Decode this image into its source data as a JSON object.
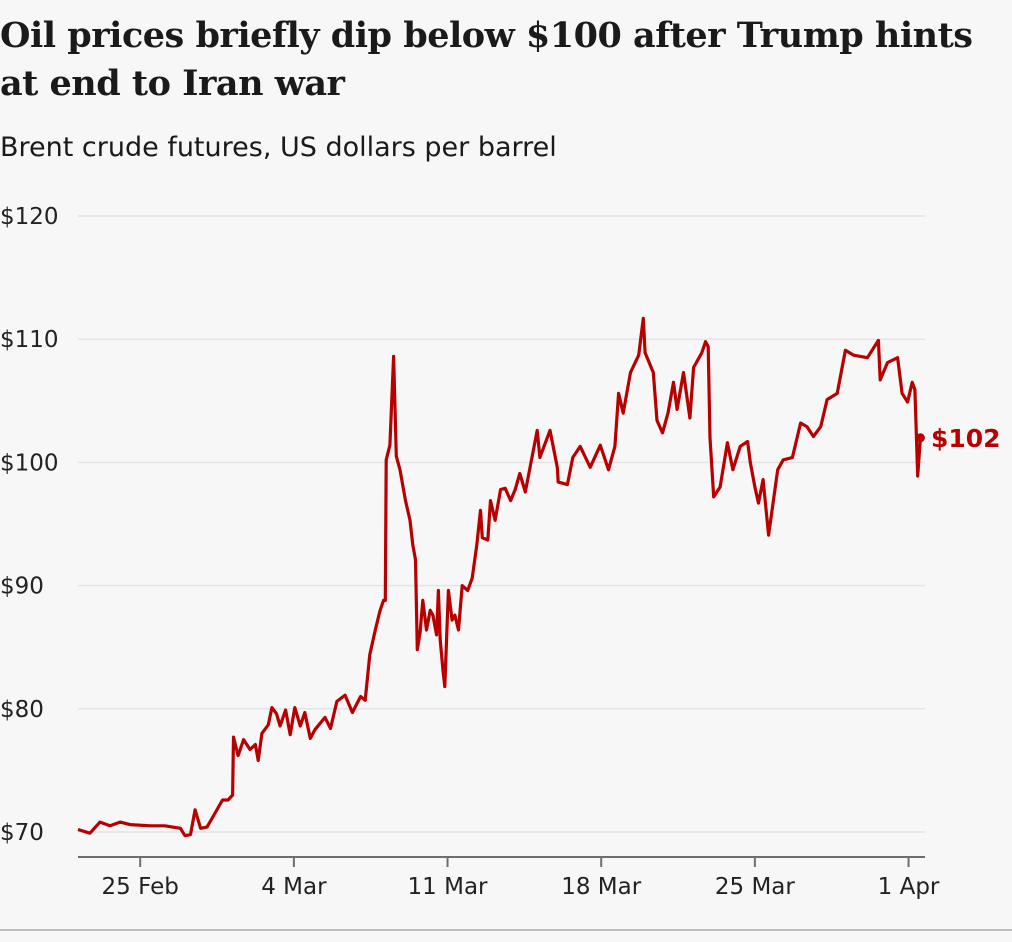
{
  "chart_data": {
    "type": "line",
    "title": "Oil prices briefly dip below $100 after Trump hints at end to Iran war",
    "subtitle": "Brent crude futures, US dollars per barrel",
    "xlabel": "",
    "ylabel": "",
    "ylim": [
      70,
      120
    ],
    "xlim": [
      "02-22 04",
      "04-01 18"
    ],
    "grid": true,
    "line_color": "#b80000",
    "yticks": [
      {
        "value": 120,
        "label": "$120"
      },
      {
        "value": 110,
        "label": "$110"
      },
      {
        "value": 100,
        "label": "$100"
      },
      {
        "value": 90,
        "label": "$90"
      },
      {
        "value": 80,
        "label": "$80"
      },
      {
        "value": 70,
        "label": "$70"
      }
    ],
    "xticks": [
      {
        "date": "02-25 00",
        "label": "25 Feb"
      },
      {
        "date": "03-04 00",
        "label": "4 Mar"
      },
      {
        "date": "03-11 00",
        "label": "11 Mar"
      },
      {
        "date": "03-18 00",
        "label": "18 Mar"
      },
      {
        "date": "03-25 00",
        "label": "25 Mar"
      },
      {
        "date": "04-01 00",
        "label": "1 Apr"
      }
    ],
    "end_label": "$102",
    "series": [
      {
        "points": [
          [
            "02-22 04",
            70.2
          ],
          [
            "02-22 17",
            69.9
          ],
          [
            "02-23 04",
            70.8
          ],
          [
            "02-23 15",
            70.5
          ],
          [
            "02-24 02",
            70.8
          ],
          [
            "02-24 13",
            70.6
          ],
          [
            "02-25 11",
            70.5
          ],
          [
            "02-26 03",
            70.5
          ],
          [
            "02-26 20",
            70.3
          ],
          [
            "02-27 01",
            69.7
          ],
          [
            "02-27 07",
            69.8
          ],
          [
            "02-27 12",
            71.8
          ],
          [
            "02-27 18",
            70.3
          ],
          [
            "02-28 01",
            70.4
          ],
          [
            "02-28 08",
            71.3
          ],
          [
            "02-28 18",
            72.6
          ],
          [
            "03-01 00",
            72.6
          ],
          [
            "03-01 05",
            73.0
          ],
          [
            "03-01 06",
            77.7
          ],
          [
            "03-01 11",
            76.2
          ],
          [
            "03-01 17",
            77.5
          ],
          [
            "03-02 00",
            76.7
          ],
          [
            "03-02 06",
            77.1
          ],
          [
            "03-02 09",
            75.8
          ],
          [
            "03-02 13",
            78.0
          ],
          [
            "03-02 20",
            78.7
          ],
          [
            "03-03 00",
            80.1
          ],
          [
            "03-03 05",
            79.6
          ],
          [
            "03-03 09",
            78.6
          ],
          [
            "03-03 15",
            79.9
          ],
          [
            "03-03 20",
            77.9
          ],
          [
            "03-04 01",
            80.1
          ],
          [
            "03-04 07",
            78.6
          ],
          [
            "03-04 12",
            79.7
          ],
          [
            "03-04 18",
            77.6
          ],
          [
            "03-04 23",
            78.3
          ],
          [
            "03-05 10",
            79.3
          ],
          [
            "03-05 16",
            78.4
          ],
          [
            "03-05 23",
            80.6
          ],
          [
            "03-06 08",
            81.1
          ],
          [
            "03-06 16",
            79.7
          ],
          [
            "03-07 01",
            81.0
          ],
          [
            "03-07 06",
            80.7
          ],
          [
            "03-07 11",
            84.4
          ],
          [
            "03-07 17",
            86.4
          ],
          [
            "03-07 22",
            87.9
          ],
          [
            "03-08 02",
            88.8
          ],
          [
            "03-08 04",
            88.8
          ],
          [
            "03-08 05",
            100.2
          ],
          [
            "03-08 09",
            101.4
          ],
          [
            "03-08 13",
            108.6
          ],
          [
            "03-08 16",
            100.5
          ],
          [
            "03-08 20",
            99.4
          ],
          [
            "03-09 02",
            96.9
          ],
          [
            "03-09 07",
            95.3
          ],
          [
            "03-09 10",
            93.3
          ],
          [
            "03-09 13",
            92.1
          ],
          [
            "03-09 15",
            84.8
          ],
          [
            "03-09 18",
            86.2
          ],
          [
            "03-09 21",
            88.8
          ],
          [
            "03-10 01",
            86.4
          ],
          [
            "03-10 05",
            88.0
          ],
          [
            "03-10 08",
            87.6
          ],
          [
            "03-10 12",
            86.0
          ],
          [
            "03-10 14",
            89.6
          ],
          [
            "03-10 16",
            85.6
          ],
          [
            "03-10 19",
            83.1
          ],
          [
            "03-10 21",
            81.8
          ],
          [
            "03-11 01",
            89.6
          ],
          [
            "03-11 05",
            87.2
          ],
          [
            "03-11 08",
            87.6
          ],
          [
            "03-11 12",
            86.4
          ],
          [
            "03-11 16",
            90.0
          ],
          [
            "03-11 22",
            89.6
          ],
          [
            "03-12 03",
            90.6
          ],
          [
            "03-12 08",
            93.3
          ],
          [
            "03-12 12",
            96.1
          ],
          [
            "03-12 14",
            93.9
          ],
          [
            "03-12 20",
            93.7
          ],
          [
            "03-12 23",
            96.9
          ],
          [
            "03-13 04",
            95.3
          ],
          [
            "03-13 10",
            97.8
          ],
          [
            "03-13 15",
            97.9
          ],
          [
            "03-13 21",
            96.9
          ],
          [
            "03-14 02",
            97.8
          ],
          [
            "03-14 07",
            99.1
          ],
          [
            "03-14 13",
            97.6
          ],
          [
            "03-15 02",
            102.6
          ],
          [
            "03-15 05",
            100.4
          ],
          [
            "03-15 16",
            102.6
          ],
          [
            "03-16 00",
            99.6
          ],
          [
            "03-16 01",
            98.4
          ],
          [
            "03-16 11",
            98.2
          ],
          [
            "03-16 17",
            100.4
          ],
          [
            "03-17 01",
            101.3
          ],
          [
            "03-17 12",
            99.6
          ],
          [
            "03-17 23",
            101.4
          ],
          [
            "03-18 08",
            99.4
          ],
          [
            "03-18 15",
            101.3
          ],
          [
            "03-18 19",
            105.6
          ],
          [
            "03-19 00",
            104.0
          ],
          [
            "03-19 08",
            107.3
          ],
          [
            "03-19 17",
            108.7
          ],
          [
            "03-19 22",
            111.7
          ],
          [
            "03-20 00",
            108.9
          ],
          [
            "03-20 09",
            107.3
          ],
          [
            "03-20 13",
            103.4
          ],
          [
            "03-20 19",
            102.4
          ],
          [
            "03-21 01",
            104.0
          ],
          [
            "03-21 07",
            106.5
          ],
          [
            "03-21 11",
            104.3
          ],
          [
            "03-21 18",
            107.3
          ],
          [
            "03-22 01",
            103.6
          ],
          [
            "03-22 05",
            107.7
          ],
          [
            "03-22 14",
            108.9
          ],
          [
            "03-22 18",
            109.8
          ],
          [
            "03-22 21",
            109.4
          ],
          [
            "03-22 23",
            102.0
          ],
          [
            "03-23 03",
            97.2
          ],
          [
            "03-23 10",
            98.0
          ],
          [
            "03-23 18",
            101.6
          ],
          [
            "03-24 00",
            99.4
          ],
          [
            "03-24 08",
            101.3
          ],
          [
            "03-24 16",
            101.7
          ],
          [
            "03-24 19",
            100.0
          ],
          [
            "03-25 00",
            98.0
          ],
          [
            "03-25 04",
            96.7
          ],
          [
            "03-25 09",
            98.6
          ],
          [
            "03-25 15",
            94.1
          ],
          [
            "03-26 01",
            99.4
          ],
          [
            "03-26 07",
            100.2
          ],
          [
            "03-26 17",
            100.4
          ],
          [
            "03-27 02",
            103.2
          ],
          [
            "03-27 09",
            102.9
          ],
          [
            "03-27 16",
            102.1
          ],
          [
            "03-28 00",
            102.9
          ],
          [
            "03-28 07",
            105.1
          ],
          [
            "03-28 18",
            105.6
          ],
          [
            "03-29 03",
            109.1
          ],
          [
            "03-29 12",
            108.7
          ],
          [
            "03-30 03",
            108.5
          ],
          [
            "03-30 15",
            109.9
          ],
          [
            "03-30 17",
            106.7
          ],
          [
            "03-31 01",
            108.1
          ],
          [
            "03-31 12",
            108.5
          ],
          [
            "03-31 17",
            105.6
          ],
          [
            "03-31 23",
            104.9
          ],
          [
            "04-01 04",
            106.5
          ],
          [
            "04-01 07",
            105.9
          ],
          [
            "04-01 10",
            98.9
          ],
          [
            "04-01 13",
            102.0
          ]
        ]
      }
    ]
  }
}
